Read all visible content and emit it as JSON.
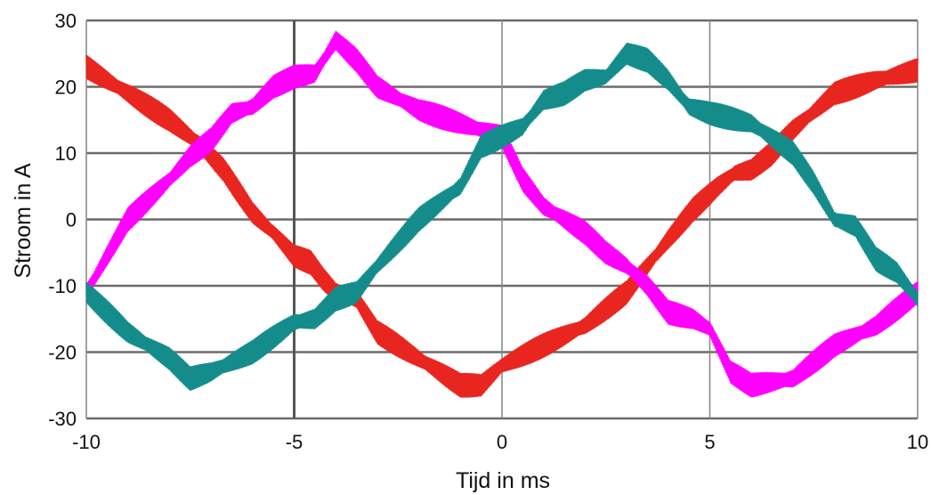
{
  "chart_data": {
    "type": "line",
    "title": "",
    "xlabel": "Tijd in ms",
    "ylabel": "Stroom in A",
    "xlim": [
      -10,
      10
    ],
    "ylim": [
      -30,
      30
    ],
    "xticks": [
      -10,
      -5,
      0,
      5,
      10
    ],
    "yticks": [
      -30,
      -20,
      -10,
      0,
      10,
      20,
      30
    ],
    "xtick_labels": [
      "-10",
      "-5",
      "0",
      "5",
      "10"
    ],
    "ytick_labels": [
      "-30",
      "-20",
      "-10",
      "0",
      "10",
      "20",
      "30"
    ],
    "grid": true,
    "legend": "none",
    "ripple_amplitude": 1.8,
    "series": [
      {
        "color": "#e8251f",
        "x": [
          -10,
          -9,
          -8,
          -7.3,
          -6.7,
          -6,
          -5.5,
          -5,
          -4.6,
          -4.3,
          -4,
          -3.5,
          -3,
          -2,
          -1,
          -0.5,
          0,
          1,
          2,
          3,
          4,
          4.6,
          5.2,
          5.6,
          6,
          6.5,
          7,
          8,
          9,
          10
        ],
        "y": [
          23,
          19,
          15,
          11.5,
          7.5,
          1,
          -2,
          -5.5,
          -6.5,
          -9,
          -11,
          -12,
          -17,
          -21,
          -25,
          -25,
          -22,
          -19,
          -16,
          -11,
          -3,
          1.5,
          5,
          7,
          7.5,
          10,
          13.5,
          19,
          21,
          22.5
        ]
      },
      {
        "color": "#ff00ff",
        "x": [
          -10,
          -9,
          -8,
          -7.5,
          -7,
          -6.5,
          -6,
          -5.5,
          -5,
          -4.5,
          -4,
          -3.5,
          -3,
          -2,
          -1,
          0,
          0.5,
          1,
          2,
          2.5,
          3,
          3.5,
          4,
          4.6,
          5,
          5.5,
          6,
          7,
          8,
          9,
          10
        ],
        "y": [
          -11,
          0,
          6,
          9.5,
          12,
          16,
          17,
          20,
          21.5,
          22,
          27,
          24,
          20,
          16.5,
          14.5,
          12.5,
          6,
          2,
          -2,
          -5,
          -7,
          -10,
          -14,
          -15,
          -16.5,
          -23,
          -25,
          -24,
          -19,
          -16,
          -11
        ]
      },
      {
        "color": "#148c8c",
        "x": [
          -10,
          -9,
          -8,
          -7.5,
          -7,
          -6,
          -5,
          -4.5,
          -4,
          -3.5,
          -3,
          -2,
          -1,
          -0.5,
          0,
          0.5,
          1,
          1.5,
          2,
          2.5,
          3,
          3.5,
          4,
          4.5,
          5,
          6,
          7,
          7.5,
          8,
          8.5,
          9,
          9.5,
          10
        ],
        "y": [
          -11,
          -17,
          -21,
          -24,
          -23,
          -20,
          -15.5,
          -15,
          -12,
          -11,
          -7,
          0,
          5,
          11,
          12.5,
          14,
          18,
          19,
          21,
          21.5,
          25,
          24,
          21,
          17,
          16,
          14.5,
          10,
          5.5,
          0,
          -1,
          -6,
          -8,
          -12
        ]
      }
    ]
  }
}
